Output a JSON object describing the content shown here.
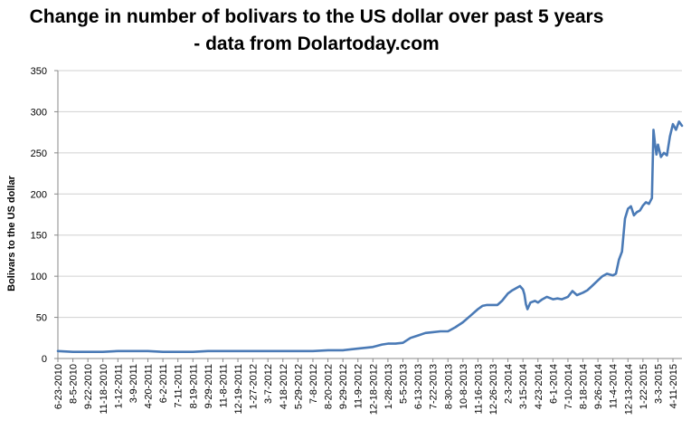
{
  "chart_data": {
    "type": "line",
    "title": "Change in number of bolivars to the US dollar over past 5 years - data from Dolartoday.com",
    "xlabel": "",
    "ylabel": "Bolivars to the US dollar",
    "ylim": [
      0,
      350
    ],
    "yticks": [
      0,
      50,
      100,
      150,
      200,
      250,
      300,
      350
    ],
    "grid": "horizontal",
    "legend": "none",
    "line_color": "#4a7ab6",
    "xticks": [
      "6-23-2010",
      "8-5-2010",
      "9-22-2010",
      "11-18-2010",
      "1-12-2011",
      "3-9-2011",
      "4-20-2011",
      "6-2-2011",
      "7-11-2011",
      "8-19-2011",
      "9-29-2011",
      "11-8-2011",
      "12-19-2011",
      "1-27-2012",
      "3-7-2012",
      "4-18-2012",
      "5-29-2012",
      "7-8-2012",
      "8-20-2012",
      "9-29-2012",
      "11-9-2012",
      "12-18-2012",
      "1-28-2013",
      "5-5-2013",
      "6-13-2013",
      "7-22-2013",
      "8-30-2013",
      "10-8-2013",
      "11-16-2013",
      "12-26-2013",
      "2-3-2014",
      "3-15-2014",
      "4-23-2014",
      "6-1-2014",
      "7-10-2014",
      "8-18-2014",
      "9-26-2014",
      "11-4-2014",
      "12-13-2014",
      "1-22-2015",
      "3-3-2015",
      "4-11-2015"
    ],
    "series": [
      {
        "x": [
          0,
          1,
          2,
          3,
          4,
          5,
          6,
          7,
          8,
          9,
          10,
          11,
          12,
          13,
          14,
          15,
          16,
          17,
          18,
          19,
          20,
          21,
          21.6,
          22,
          22.5,
          23,
          23.5,
          24,
          24.5,
          25,
          25.5,
          26,
          26.5,
          27,
          27.5,
          28,
          28.3,
          28.6,
          29,
          29.3,
          29.6,
          30,
          30.3,
          30.6,
          30.8,
          31,
          31.1,
          31.2,
          31.3,
          31.5,
          31.8,
          32,
          32.3,
          32.6,
          33,
          33.3,
          33.6,
          34,
          34.3,
          34.6,
          35,
          35.3,
          35.6,
          36,
          36.3,
          36.6,
          37,
          37.2,
          37.4,
          37.6,
          37.8,
          38,
          38.2,
          38.4,
          38.6,
          38.8,
          39,
          39.2,
          39.4,
          39.6,
          39.7,
          39.8,
          39.9,
          40,
          40.2,
          40.4,
          40.6,
          40.8,
          41,
          41.2,
          41.4,
          41.6
        ],
        "y": [
          9,
          8,
          8,
          8,
          9,
          9,
          9,
          8,
          8,
          8,
          9,
          9,
          9,
          9,
          9,
          9,
          9,
          9,
          10,
          10,
          12,
          14,
          17,
          18,
          18,
          19,
          25,
          28,
          31,
          32,
          33,
          33,
          38,
          44,
          52,
          60,
          64,
          65,
          65,
          65,
          70,
          79,
          83,
          86,
          88,
          84,
          78,
          66,
          60,
          68,
          70,
          68,
          72,
          75,
          72,
          73,
          72,
          75,
          82,
          77,
          80,
          83,
          88,
          95,
          100,
          103,
          101,
          103,
          120,
          130,
          170,
          182,
          185,
          174,
          178,
          180,
          186,
          190,
          188,
          195,
          278,
          262,
          248,
          260,
          245,
          250,
          247,
          270,
          285,
          278,
          288,
          283
        ]
      }
    ]
  }
}
